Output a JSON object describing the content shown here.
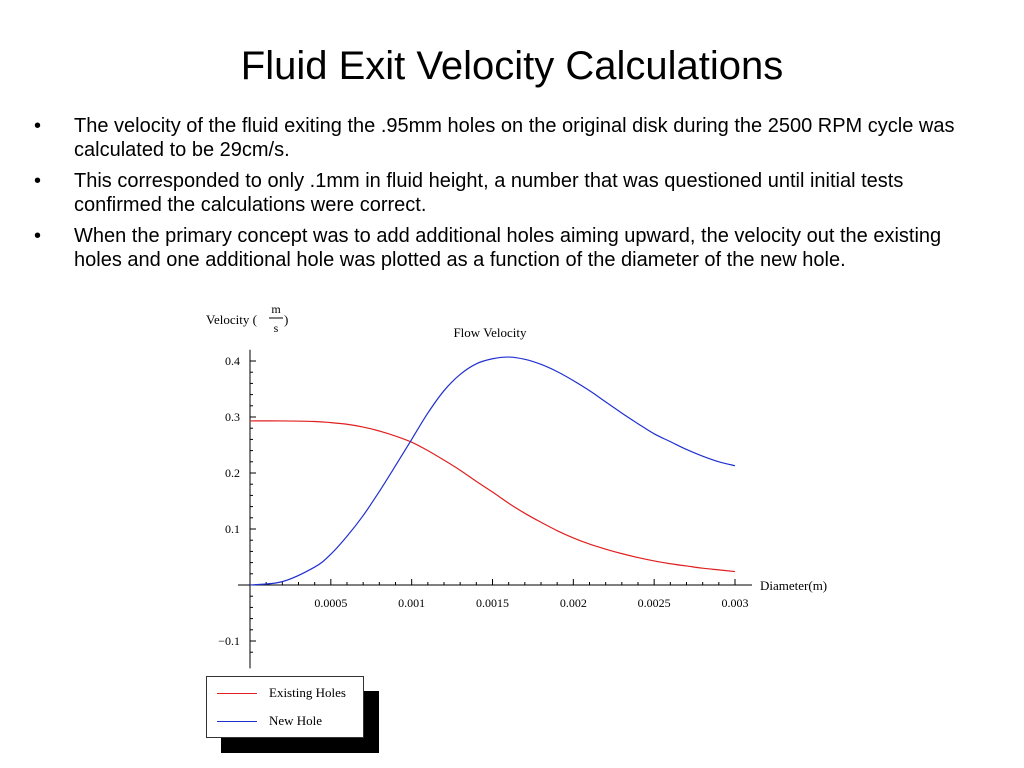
{
  "slide": {
    "title": "Fluid Exit Velocity Calculations",
    "bullets": [
      "The velocity of the fluid exiting the .95mm holes on the original disk during the 2500 RPM cycle was calculated to be 29cm/s.",
      "This corresponded to only .1mm in fluid height, a number that was questioned until initial tests confirmed the calculations were correct.",
      "When the primary concept was to add additional holes aiming upward, the velocity out the existing holes and one additional hole was plotted as a function of the diameter of the new hole."
    ],
    "bullet_symbol": "•"
  },
  "chart_data": {
    "type": "line",
    "title": "Flow Velocity",
    "xlabel": "Diameter(m)",
    "ylabel": {
      "prefix": "Velocity (",
      "numerator": "m",
      "denominator": "s",
      "suffix": ")"
    },
    "xlim": [
      0,
      0.003
    ],
    "ylim": [
      -0.14,
      0.42
    ],
    "x_ticks": [
      {
        "value": 0.0005,
        "label": "0.0005"
      },
      {
        "value": 0.001,
        "label": "0.001"
      },
      {
        "value": 0.0015,
        "label": "0.0015"
      },
      {
        "value": 0.002,
        "label": "0.002"
      },
      {
        "value": 0.0025,
        "label": "0.0025"
      },
      {
        "value": 0.003,
        "label": "0.003"
      }
    ],
    "y_ticks": [
      {
        "value": 0.4,
        "label": "0.4"
      },
      {
        "value": 0.3,
        "label": "0.3"
      },
      {
        "value": 0.2,
        "label": "0.2"
      },
      {
        "value": 0.1,
        "label": "0.1"
      },
      {
        "value": -0.1,
        "label": "−0.1"
      }
    ],
    "grid": false,
    "legend_position": "bottom-left",
    "x": [
      0,
      0.0002,
      0.0004,
      0.0005,
      0.0006,
      0.0007,
      0.0008,
      0.0009,
      0.001,
      0.0011,
      0.0012,
      0.0013,
      0.0014,
      0.0015,
      0.0016,
      0.0017,
      0.0018,
      0.0019,
      0.002,
      0.0021,
      0.0022,
      0.0023,
      0.0024,
      0.0025,
      0.0026,
      0.0027,
      0.0028,
      0.0029,
      0.003
    ],
    "series": [
      {
        "name": "Existing Holes",
        "color": "#e02020",
        "values": [
          0.293,
          0.293,
          0.292,
          0.29,
          0.287,
          0.282,
          0.275,
          0.266,
          0.255,
          0.24,
          0.223,
          0.205,
          0.185,
          0.166,
          0.146,
          0.128,
          0.112,
          0.097,
          0.084,
          0.073,
          0.064,
          0.056,
          0.049,
          0.043,
          0.038,
          0.034,
          0.03,
          0.027,
          0.024
        ]
      },
      {
        "name": "New Hole",
        "color": "#2030d0",
        "values": [
          0,
          0.006,
          0.032,
          0.055,
          0.087,
          0.124,
          0.167,
          0.213,
          0.26,
          0.307,
          0.347,
          0.376,
          0.395,
          0.404,
          0.407,
          0.403,
          0.394,
          0.381,
          0.365,
          0.347,
          0.327,
          0.307,
          0.288,
          0.27,
          0.256,
          0.242,
          0.23,
          0.22,
          0.213
        ]
      }
    ],
    "colors": {
      "axis": "#000000",
      "legend_shadow": "#000000"
    }
  }
}
